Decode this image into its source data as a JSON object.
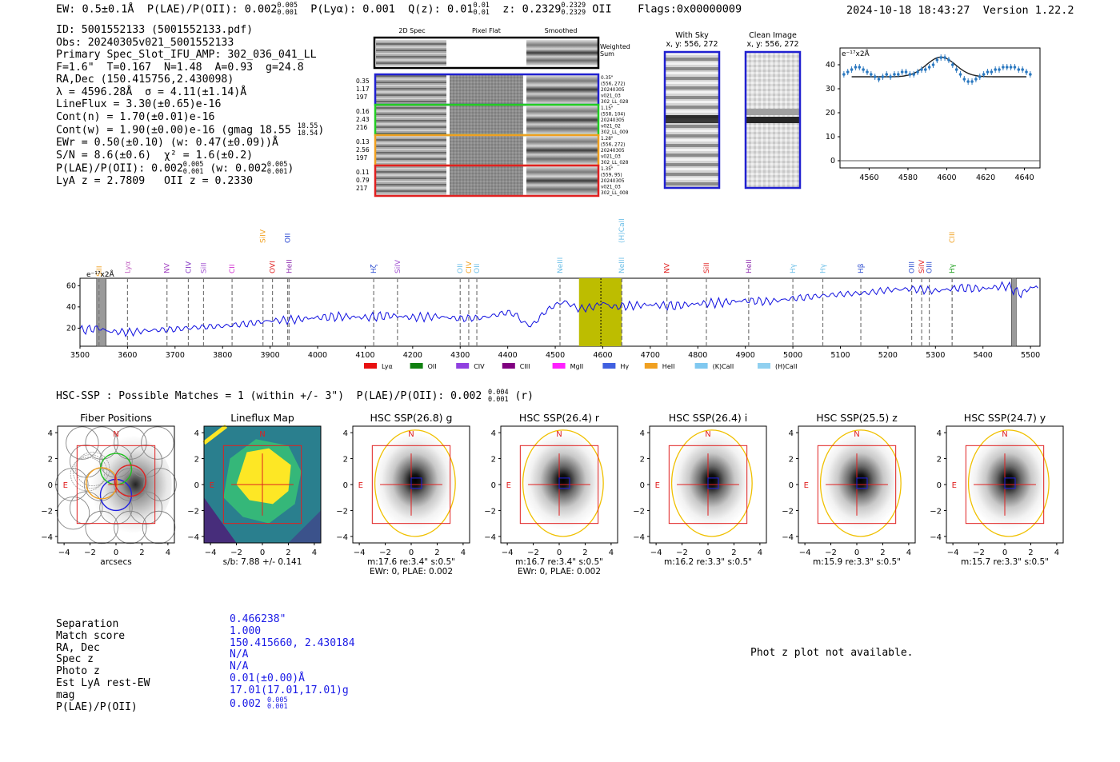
{
  "header": {
    "ew": "EW: 0.5±0.1Å",
    "plae_label": "P(LAE)/P(OII): 0.002",
    "plae_hi": "0.005",
    "plae_lo": "0.001",
    "plya": "P(Lyα): 0.001",
    "qz_label": "Q(z): 0.01",
    "qz_hi": "0.01",
    "qz_lo": "0.01",
    "z_label": "z: 0.2329",
    "z_hi": "0.2329",
    "z_lo": "0.2329",
    "line_id": "OII",
    "flags": "Flags:0x00000009",
    "datetime": "2024-10-18 18:43:27",
    "version": "Version 1.22.2"
  },
  "info": {
    "id": "ID: 5001552133 (5001552133.pdf)",
    "obs": "Obs: 20240305v021_5001552133",
    "primary": "Primary Spec_Slot_IFU_AMP: 302_036_041_LL",
    "fiber": "F=1.6\"  T=0.167  N=1.48  A=0.93  g=24.8",
    "radec": "RA,Dec (150.415756,2.430098)",
    "lambda": "λ = 4596.28Å  σ = 4.11(±1.14)Å",
    "lineflux": "LineFlux = 3.30(±0.65)e-16",
    "contn": "Cont(n) = 1.70(±0.01)e-16",
    "contw": "Cont(w) = 1.90(±0.00)e-16 (gmag 18.55",
    "gmag_hi": "18.55",
    "gmag_lo": "18.54",
    "ewr": "EWr = 0.50(±0.10) (w: 0.47(±0.09))Å",
    "sn": "S/N = 8.6(±0.6)  χ² = 1.6(±0.2)",
    "plae": "P(LAE)/P(OII): 0.002",
    "plae_hi": "0.005",
    "plae_lo": "0.001",
    "plae_w": "(w: 0.002",
    "plae_w_hi": "0.005",
    "plae_w_lo": "0.001",
    "lya_z": "LyA z = 2.7809   OII z = 0.2330"
  },
  "cutouts": {
    "col_2d": "2D Spec",
    "col_flat": "Pixel Flat",
    "col_smooth": "Smoothed",
    "weighted": "Weighted",
    "sum": "Sum",
    "rows": [
      {
        "stats": [
          "0.35",
          "1.17",
          "197"
        ],
        "notes": [
          "0.35\"",
          "(556, 272)",
          "20240305",
          "v021_03",
          "302_LL_028"
        ],
        "color": "#2020d0"
      },
      {
        "stats": [
          "0.16",
          "2.43",
          "216"
        ],
        "notes": [
          "1.15\"",
          "(558, 104)",
          "20240305",
          "v021_02",
          "302_LL_009"
        ],
        "color": "#22cc22"
      },
      {
        "stats": [
          "0.13",
          "2.56",
          "197"
        ],
        "notes": [
          "1.28\"",
          "(556, 272)",
          "20240305",
          "v021_03",
          "302_LL_028"
        ],
        "color": "#f0a020"
      },
      {
        "stats": [
          "0.11",
          "0.79",
          "217"
        ],
        "notes": [
          "1.35\"",
          "(559, 95)",
          "20240305",
          "v021_03",
          "302_LL_008"
        ],
        "color": "#e02020"
      }
    ],
    "with_sky": "With Sky",
    "with_sky_xy": "x, y: 556, 272",
    "clean": "Clean Image",
    "clean_xy": "x, y: 556, 272"
  },
  "zoom_chart": {
    "type": "scatter",
    "ylabel": "e⁻¹⁷x2Å",
    "x_ticks": [
      "4560",
      "4580",
      "4600",
      "4620",
      "4640"
    ],
    "y_ticks": [
      "0",
      "10",
      "20",
      "30",
      "40"
    ],
    "xlim": [
      4545,
      4648
    ],
    "ylim": [
      -3,
      47
    ],
    "x": [
      4547,
      4549,
      4551,
      4553,
      4555,
      4557,
      4559,
      4561,
      4563,
      4565,
      4567,
      4569,
      4571,
      4573,
      4575,
      4577,
      4579,
      4581,
      4583,
      4585,
      4587,
      4589,
      4591,
      4593,
      4595,
      4597,
      4599,
      4601,
      4603,
      4605,
      4607,
      4609,
      4611,
      4613,
      4615,
      4617,
      4619,
      4621,
      4623,
      4625,
      4627,
      4629,
      4631,
      4633,
      4635,
      4637,
      4639,
      4641,
      4643
    ],
    "y": [
      36,
      37,
      38,
      39,
      39,
      38,
      37,
      36,
      35,
      34,
      35,
      36,
      35,
      36,
      36,
      37,
      37,
      36,
      36,
      37,
      38,
      38,
      39,
      40,
      42,
      43,
      43,
      42,
      40,
      38,
      36,
      34,
      33,
      33,
      34,
      35,
      36,
      37,
      37,
      38,
      38,
      39,
      39,
      39,
      39,
      38,
      38,
      37,
      36
    ]
  },
  "spectrum_chart": {
    "type": "line",
    "ylabel": "e⁻¹⁷x2Å",
    "xlim": [
      3500,
      5520
    ],
    "ylim": [
      3,
      67
    ],
    "x_ticks": [
      "3500",
      "3600",
      "3700",
      "3800",
      "3900",
      "4000",
      "4100",
      "4200",
      "4300",
      "4400",
      "4500",
      "4600",
      "4700",
      "4800",
      "4900",
      "5000",
      "5100",
      "5200",
      "5300",
      "5400",
      "5500"
    ],
    "y_ticks": [
      "20",
      "40",
      "60"
    ],
    "highlight_band": [
      4550,
      4640
    ],
    "masked_bands": [
      [
        3535,
        3555
      ],
      [
        5460,
        5470
      ]
    ],
    "knots_x": [
      3500,
      3540,
      3560,
      3600,
      3650,
      3700,
      3750,
      3800,
      3850,
      3900,
      3950,
      4000,
      4050,
      4100,
      4150,
      4200,
      4250,
      4300,
      4350,
      4380,
      4400,
      4420,
      4430,
      4450,
      4480,
      4500,
      4520,
      4550,
      4580,
      4600,
      4620,
      4650,
      4700,
      4750,
      4800,
      4850,
      4900,
      4950,
      5000,
      5050,
      5100,
      5150,
      5200,
      5250,
      5300,
      5350,
      5400,
      5450,
      5480,
      5500,
      5520
    ],
    "knots_y": [
      18,
      20,
      17,
      16,
      18,
      19,
      21,
      22,
      24,
      27,
      28,
      30,
      31,
      30,
      32,
      30,
      31,
      29,
      30,
      33,
      35,
      32,
      26,
      22,
      36,
      42,
      45,
      38,
      40,
      44,
      40,
      41,
      42,
      41,
      43,
      44,
      46,
      45,
      48,
      50,
      52,
      53,
      56,
      57,
      55,
      58,
      57,
      60,
      52,
      58,
      59
    ],
    "lines": [
      {
        "label": "SiII",
        "color": "#f0a020",
        "x": 3540,
        "row": "high"
      },
      {
        "label": "Lyα",
        "color": "#c060c0",
        "x": 3600,
        "row": "mid"
      },
      {
        "label": "NV",
        "color": "#a040c0",
        "x": 3683,
        "row": "mid"
      },
      {
        "label": "CIV",
        "color": "#8030c0",
        "x": 3728,
        "row": "mid"
      },
      {
        "label": "SiII",
        "color": "#a050d0",
        "x": 3760,
        "row": "mid"
      },
      {
        "label": "CII",
        "color": "#d030d0",
        "x": 3820,
        "row": "mid"
      },
      {
        "label": "SiIV",
        "color": "#f0a020",
        "x": 3885,
        "row": "top"
      },
      {
        "label": "OVI",
        "color": "#e02020",
        "x": 3905,
        "row": "mid"
      },
      {
        "label": "OII",
        "color": "#2040d0",
        "x": 3937,
        "row": "top"
      },
      {
        "label": "HeII",
        "color": "#9030b0",
        "x": 3940,
        "row": "mid"
      },
      {
        "label": "Hζ",
        "color": "#3050d0",
        "x": 4118,
        "row": "mid"
      },
      {
        "label": "SiIV",
        "color": "#a050d0",
        "x": 4168,
        "row": "mid"
      },
      {
        "label": "OII",
        "color": "#70c0e8",
        "x": 4300,
        "row": "mid"
      },
      {
        "label": "CIV",
        "color": "#f0a020",
        "x": 4318,
        "row": "mid"
      },
      {
        "label": "OII",
        "color": "#70c0e8",
        "x": 4335,
        "row": "mid"
      },
      {
        "label": "NeIII",
        "color": "#70c0e8",
        "x": 4510,
        "row": "mid"
      },
      {
        "label": "(H)CaII",
        "color": "#70c0e8",
        "x": 4640,
        "row": "top"
      },
      {
        "label": "NeIII",
        "color": "#70c0e8",
        "x": 4640,
        "row": "mid"
      },
      {
        "label": "NV",
        "color": "#e02020",
        "x": 4735,
        "row": "mid"
      },
      {
        "label": "SiII",
        "color": "#e02020",
        "x": 4818,
        "row": "mid"
      },
      {
        "label": "HeII",
        "color": "#9030b0",
        "x": 4907,
        "row": "mid"
      },
      {
        "label": "Hγ",
        "color": "#70c0e8",
        "x": 5000,
        "row": "mid"
      },
      {
        "label": "Hγ",
        "color": "#70c0e8",
        "x": 5063,
        "row": "mid"
      },
      {
        "label": "Hβ",
        "color": "#3050d0",
        "x": 5143,
        "row": "mid"
      },
      {
        "label": "OIII",
        "color": "#3050d0",
        "x": 5250,
        "row": "mid"
      },
      {
        "label": "SiIV",
        "color": "#e02020",
        "x": 5271,
        "row": "mid"
      },
      {
        "label": "OIII",
        "color": "#3050d0",
        "x": 5287,
        "row": "mid"
      },
      {
        "label": "CIII",
        "color": "#f0a020",
        "x": 5335,
        "row": "top"
      },
      {
        "label": "Hγ",
        "color": "#20a020",
        "x": 5335,
        "row": "mid"
      }
    ],
    "legend": [
      {
        "label": "Lyα",
        "color": "#e81010"
      },
      {
        "label": "OII",
        "color": "#108010"
      },
      {
        "label": "CIV",
        "color": "#9040e0"
      },
      {
        "label": "CIII",
        "color": "#800080"
      },
      {
        "label": "MgII",
        "color": "#ff20ff"
      },
      {
        "label": "Hγ",
        "color": "#4060e0"
      },
      {
        "label": "HeII",
        "color": "#f0a020"
      },
      {
        "label": "(K)CaII",
        "color": "#80c8f0"
      },
      {
        "label": "(H)CaII",
        "color": "#90d0f0"
      }
    ]
  },
  "hsc": {
    "title": "HSC-SSP : Possible Matches = 1 (within +/- 3\")  P(LAE)/P(OII): 0.002",
    "title_hi": "0.004",
    "title_lo": "0.001",
    "title_band": "(r)",
    "ticks": [
      "−4",
      "−2",
      "0",
      "2",
      "4"
    ],
    "north": "N",
    "east": "E",
    "panels": [
      {
        "title": "Fiber Positions",
        "bottom1": "arcsecs",
        "bottom2": "",
        "kind": "fibers"
      },
      {
        "title": "Lineflux Map",
        "bottom1": "s/b: 7.88 +/- 0.141",
        "bottom2": "",
        "kind": "lineflux"
      },
      {
        "title": "HSC SSP(26.8) g",
        "bottom1": "m:17.6  re:3.4\"  s:0.5\"",
        "bottom2": "EWr: 0, PLAE: 0.002",
        "kind": "image"
      },
      {
        "title": "HSC SSP(26.4) r",
        "bottom1": "m:16.7  re:3.4\"  s:0.5\"",
        "bottom2": "EWr: 0, PLAE: 0.002",
        "kind": "image"
      },
      {
        "title": "HSC SSP(26.4) i",
        "bottom1": "m:16.2  re:3.3\"  s:0.5\"",
        "bottom2": "",
        "kind": "image"
      },
      {
        "title": "HSC SSP(25.5) z",
        "bottom1": "m:15.9  re:3.3\"  s:0.5\"",
        "bottom2": "",
        "kind": "image"
      },
      {
        "title": "HSC SSP(24.7) y",
        "bottom1": "m:15.7  re:3.3\"  s:0.5\"",
        "bottom2": "",
        "kind": "image"
      }
    ]
  },
  "match": {
    "labels": [
      "Separation",
      "Match score",
      "RA, Dec",
      "Spec z",
      "Photo z",
      "Est LyA rest-EW",
      "mag",
      "P(LAE)/P(OII)"
    ],
    "values": [
      "0.466238\"",
      "1.000",
      "150.415660, 2.430184",
      "N/A",
      "N/A",
      "0.01(±0.00)Å",
      "17.01(17.01,17.01)g",
      "0.002"
    ],
    "plae_hi": "0.005",
    "plae_lo": "0.001"
  },
  "photz": "Phot z plot not available."
}
